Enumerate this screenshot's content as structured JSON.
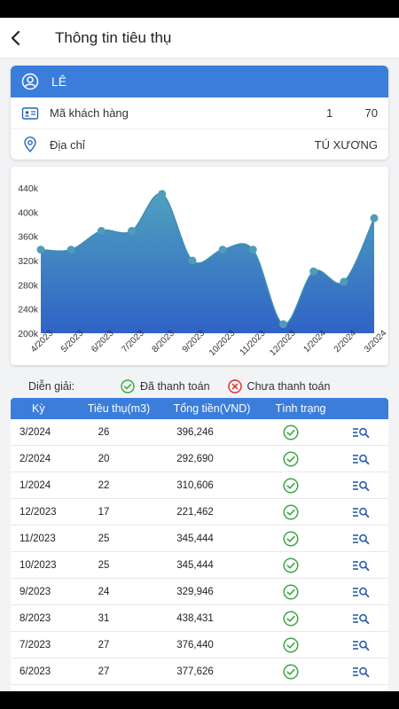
{
  "header": {
    "title": "Thông tin tiêu thụ"
  },
  "customer": {
    "name": "LÊ",
    "code_label": "Mã khách hàng",
    "code_value_1": "1",
    "code_value_2": "70",
    "address_label": "Địa chỉ",
    "address_value": "TÚ XƯƠNG"
  },
  "legend": {
    "title": "Diễn giải:",
    "paid": "Đã thanh toán",
    "unpaid": "Chưa thanh toán"
  },
  "table": {
    "headers": [
      "Kỳ",
      "Tiêu thụ(m3)",
      "Tổng tiền(VND)",
      "Tình trạng"
    ],
    "rows": [
      {
        "period": "3/2024",
        "usage": "26",
        "amount": "396,246",
        "status": "paid"
      },
      {
        "period": "2/2024",
        "usage": "20",
        "amount": "292,690",
        "status": "paid"
      },
      {
        "period": "1/2024",
        "usage": "22",
        "amount": "310,606",
        "status": "paid"
      },
      {
        "period": "12/2023",
        "usage": "17",
        "amount": "221,462",
        "status": "paid"
      },
      {
        "period": "11/2023",
        "usage": "25",
        "amount": "345,444",
        "status": "paid"
      },
      {
        "period": "10/2023",
        "usage": "25",
        "amount": "345,444",
        "status": "paid"
      },
      {
        "period": "9/2023",
        "usage": "24",
        "amount": "329,946",
        "status": "paid"
      },
      {
        "period": "8/2023",
        "usage": "31",
        "amount": "438,431",
        "status": "paid"
      },
      {
        "period": "7/2023",
        "usage": "27",
        "amount": "376,440",
        "status": "paid"
      },
      {
        "period": "6/2023",
        "usage": "27",
        "amount": "377,626",
        "status": "paid"
      }
    ]
  },
  "colors": {
    "accent": "#3b7ddb",
    "paid": "#3aa845",
    "unpaid": "#d9302c"
  },
  "chart_data": {
    "type": "area",
    "categories": [
      "4/2023",
      "5/2023",
      "6/2023",
      "7/2023",
      "8/2023",
      "9/2023",
      "10/2023",
      "11/2023",
      "12/2023",
      "1/2024",
      "2/2024",
      "3/2024"
    ],
    "values": [
      338000,
      338000,
      369000,
      369000,
      430000,
      320000,
      338000,
      338000,
      215000,
      302000,
      285000,
      390000
    ],
    "yticks": [
      "200k",
      "240k",
      "280k",
      "320k",
      "360k",
      "400k",
      "440k"
    ],
    "ylim": [
      200000,
      440000
    ]
  }
}
